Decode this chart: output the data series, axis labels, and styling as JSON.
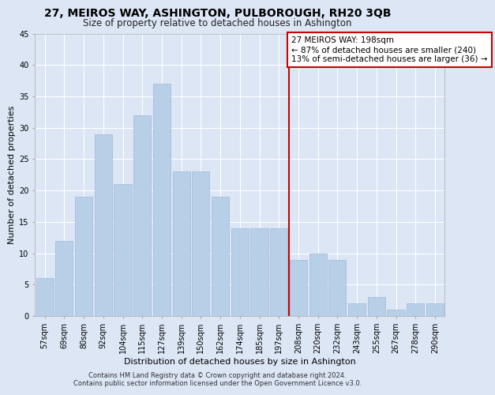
{
  "title": "27, MEIROS WAY, ASHINGTON, PULBOROUGH, RH20 3QB",
  "subtitle": "Size of property relative to detached houses in Ashington",
  "xlabel": "Distribution of detached houses by size in Ashington",
  "ylabel": "Number of detached properties",
  "categories": [
    "57sqm",
    "69sqm",
    "80sqm",
    "92sqm",
    "104sqm",
    "115sqm",
    "127sqm",
    "139sqm",
    "150sqm",
    "162sqm",
    "174sqm",
    "185sqm",
    "197sqm",
    "208sqm",
    "220sqm",
    "232sqm",
    "243sqm",
    "255sqm",
    "267sqm",
    "278sqm",
    "290sqm"
  ],
  "values": [
    6,
    12,
    19,
    29,
    21,
    32,
    37,
    23,
    23,
    19,
    14,
    14,
    14,
    9,
    10,
    9,
    2,
    3,
    1,
    2,
    2
  ],
  "bar_color": "#b8cfe8",
  "bar_edgecolor": "#a0b8d8",
  "fig_facecolor": "#dce6f5",
  "ax_facecolor": "#dce6f5",
  "grid_color": "#ffffff",
  "vline_color": "#cc0000",
  "vline_x_index": 12,
  "annotation_text": "27 MEIROS WAY: 198sqm\n← 87% of detached houses are smaller (240)\n13% of semi-detached houses are larger (36) →",
  "annotation_box_edgecolor": "#cc0000",
  "annotation_fontsize": 7.5,
  "footer_text": "Contains HM Land Registry data © Crown copyright and database right 2024.\nContains public sector information licensed under the Open Government Licence v3.0.",
  "ylim": [
    0,
    45
  ],
  "yticks": [
    0,
    5,
    10,
    15,
    20,
    25,
    30,
    35,
    40,
    45
  ],
  "title_fontsize": 10,
  "subtitle_fontsize": 8.5,
  "ylabel_fontsize": 8,
  "xlabel_fontsize": 8,
  "tick_fontsize": 7,
  "footer_fontsize": 6
}
